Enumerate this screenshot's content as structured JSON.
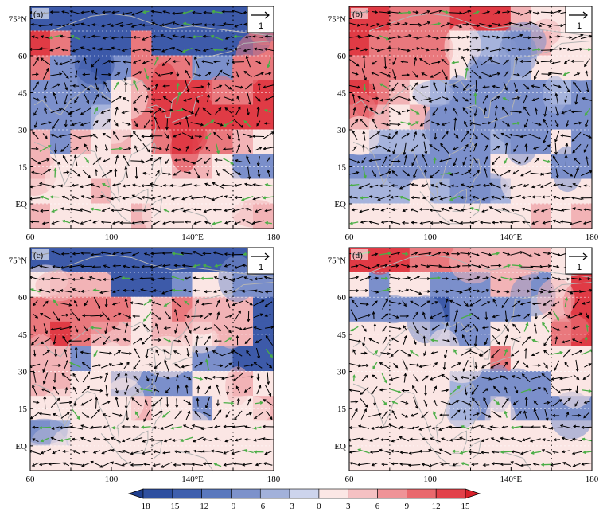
{
  "panels": [
    {
      "id": "a",
      "label": "(a)",
      "ref_label": "1",
      "field": [
        [
          "B",
          "B",
          "B",
          "B",
          "B",
          "B",
          "B",
          "B",
          "B",
          "B",
          "B",
          "B"
        ],
        [
          "R",
          "M",
          "B",
          "B",
          "B",
          "M",
          "B",
          "B",
          "B",
          "B",
          "B",
          "M"
        ],
        [
          "M",
          "L",
          "L",
          "B",
          "L",
          "M",
          "M",
          "M",
          "L",
          "L",
          "M",
          "M"
        ],
        [
          "L",
          "L",
          "L",
          "L",
          "W",
          "M",
          "R",
          "R",
          "R",
          "M",
          "M",
          "R"
        ],
        [
          "L",
          "L",
          "L",
          "l",
          "W",
          "M",
          "R",
          "R",
          "R",
          "R",
          "R",
          "R"
        ],
        [
          "P",
          "L",
          "P",
          "W",
          "P",
          "W",
          "M",
          "R",
          "M",
          "M",
          "P",
          "W"
        ],
        [
          "P",
          "W",
          "W",
          "W",
          "W",
          "W",
          "W",
          "P",
          "P",
          "W",
          "L",
          "L"
        ],
        [
          "W",
          "W",
          "W",
          "P",
          "W",
          "W",
          "W",
          "W",
          "W",
          "W",
          "W",
          "W"
        ],
        [
          "P",
          "W",
          "W",
          "W",
          "W",
          "P",
          "W",
          "W",
          "W",
          "W",
          "W",
          "P"
        ]
      ]
    },
    {
      "id": "b",
      "label": "(b)",
      "ref_label": "1",
      "field": [
        [
          "R",
          "R",
          "M",
          "M",
          "M",
          "R",
          "R",
          "R",
          "P",
          "W",
          "W",
          "P"
        ],
        [
          "R",
          "M",
          "M",
          "M",
          "M",
          "W",
          "l",
          "l",
          "L",
          "P",
          "W",
          "W"
        ],
        [
          "M",
          "M",
          "M",
          "M",
          "M",
          "W",
          "L",
          "L",
          "l",
          "W",
          "W",
          "W"
        ],
        [
          "R",
          "M",
          "P",
          "W",
          "l",
          "L",
          "L",
          "L",
          "L",
          "L",
          "l",
          "L"
        ],
        [
          "M",
          "P",
          "W",
          "P",
          "L",
          "L",
          "L",
          "L",
          "L",
          "L",
          "L",
          "L"
        ],
        [
          "W",
          "l",
          "l",
          "l",
          "L",
          "L",
          "L",
          "l",
          "L",
          "L",
          "W",
          "L"
        ],
        [
          "L",
          "L",
          "L",
          "L",
          "L",
          "L",
          "L",
          "W",
          "W",
          "W",
          "L",
          "L"
        ],
        [
          "l",
          "l",
          "l",
          "W",
          "l",
          "L",
          "L",
          "l",
          "W",
          "W",
          "W",
          "W"
        ],
        [
          "W",
          "W",
          "W",
          "W",
          "W",
          "W",
          "W",
          "W",
          "W",
          "P",
          "W",
          "P"
        ]
      ]
    },
    {
      "id": "c",
      "label": "(c)",
      "ref_label": "1",
      "field": [
        [
          "B",
          "B",
          "B",
          "B",
          "B",
          "B",
          "B",
          "B",
          "B",
          "B",
          "B",
          "B"
        ],
        [
          "W",
          "P",
          "P",
          "P",
          "B",
          "B",
          "B",
          "L",
          "W",
          "W",
          "L",
          "L"
        ],
        [
          "M",
          "M",
          "M",
          "M",
          "M",
          "W",
          "P",
          "M",
          "P",
          "P",
          "P",
          "B"
        ],
        [
          "M",
          "R",
          "M",
          "P",
          "P",
          "W",
          "P",
          "P",
          "W",
          "P",
          "P",
          "B"
        ],
        [
          "P",
          "P",
          "L",
          "W",
          "W",
          "W",
          "W",
          "W",
          "L",
          "L",
          "B",
          "B"
        ],
        [
          "P",
          "P",
          "W",
          "W",
          "L",
          "L",
          "L",
          "L",
          "W",
          "W",
          "P",
          "W"
        ],
        [
          "W",
          "W",
          "W",
          "W",
          "W",
          "P",
          "W",
          "W",
          "L",
          "W",
          "W",
          "P"
        ],
        [
          "L",
          "l",
          "W",
          "W",
          "W",
          "W",
          "W",
          "W",
          "W",
          "W",
          "W",
          "W"
        ],
        [
          "W",
          "W",
          "W",
          "W",
          "W",
          "W",
          "W",
          "W",
          "W",
          "W",
          "W",
          "W"
        ]
      ]
    },
    {
      "id": "d",
      "label": "(d)",
      "ref_label": "1",
      "field": [
        [
          "R",
          "R",
          "R",
          "M",
          "M",
          "M",
          "P",
          "P",
          "P",
          "P",
          "W",
          "W"
        ],
        [
          "W",
          "L",
          "W",
          "W",
          "L",
          "L",
          "L",
          "P",
          "P",
          "L",
          "W",
          "R"
        ],
        [
          "L",
          "L",
          "L",
          "L",
          "B",
          "L",
          "L",
          "L",
          "L",
          "W",
          "P",
          "R"
        ],
        [
          "W",
          "W",
          "W",
          "W",
          "l",
          "L",
          "L",
          "W",
          "W",
          "W",
          "M",
          "R"
        ],
        [
          "W",
          "W",
          "W",
          "W",
          "W",
          "W",
          "W",
          "M",
          "W",
          "W",
          "W",
          "W"
        ],
        [
          "W",
          "W",
          "W",
          "W",
          "W",
          "l",
          "L",
          "L",
          "L",
          "L",
          "W",
          "W"
        ],
        [
          "W",
          "W",
          "W",
          "W",
          "W",
          "l",
          "L",
          "W",
          "L",
          "L",
          "L",
          "L"
        ],
        [
          "W",
          "W",
          "W",
          "W",
          "W",
          "W",
          "W",
          "W",
          "W",
          "W",
          "W",
          "W"
        ],
        [
          "W",
          "W",
          "W",
          "W",
          "W",
          "W",
          "W",
          "W",
          "W",
          "W",
          "W",
          "W"
        ]
      ]
    }
  ],
  "x_ticks": [
    "60",
    "100",
    "140°E",
    "180"
  ],
  "y_ticks": [
    "75°N",
    "60",
    "45",
    "30",
    "15",
    "EQ"
  ],
  "colorbar": {
    "ticks": [
      "−18",
      "−15",
      "−12",
      "−9",
      "−6",
      "−3",
      "0",
      "3",
      "6",
      "9",
      "12",
      "15"
    ],
    "colors": [
      "#2e4f9f",
      "#3f5fad",
      "#5a78bd",
      "#7d92cb",
      "#a2b1da",
      "#cdd4ec",
      "#fbe7e5",
      "#f5c1c3",
      "#ef9397",
      "#e9686d",
      "#e2414a"
    ],
    "extend_low": "#1f3f8f",
    "extend_high": "#d9202a"
  },
  "field_colors": {
    "B": "#3d5aa9",
    "L": "#7b8fcb",
    "l": "#a6b3dc",
    "W": "#fbe6e4",
    "P": "#f2b3b6",
    "M": "#e9787d",
    "R": "#e03b45"
  },
  "vector_colors": {
    "black": "#000000",
    "green": "#4aae46"
  },
  "coast_color": "#b3b3b3"
}
